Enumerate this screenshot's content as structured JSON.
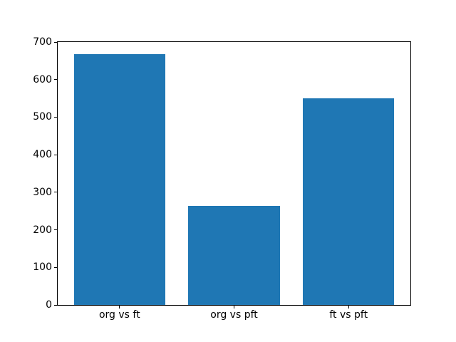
{
  "chart_data": {
    "type": "bar",
    "categories": [
      "org vs ft",
      "org vs pft",
      "ft vs pft"
    ],
    "values": [
      668,
      263,
      550
    ],
    "yticks": [
      0,
      100,
      200,
      300,
      400,
      500,
      600,
      700
    ],
    "ylim": [
      0,
      700
    ],
    "xlim": [
      -0.54,
      2.54
    ],
    "bar_width": 0.8,
    "bar_color": "#1f77b4",
    "grid": false,
    "legend": null,
    "title": "",
    "xlabel": "",
    "ylabel": ""
  },
  "colors": {
    "spine": "#000000",
    "background": "#ffffff",
    "text": "#000000"
  }
}
